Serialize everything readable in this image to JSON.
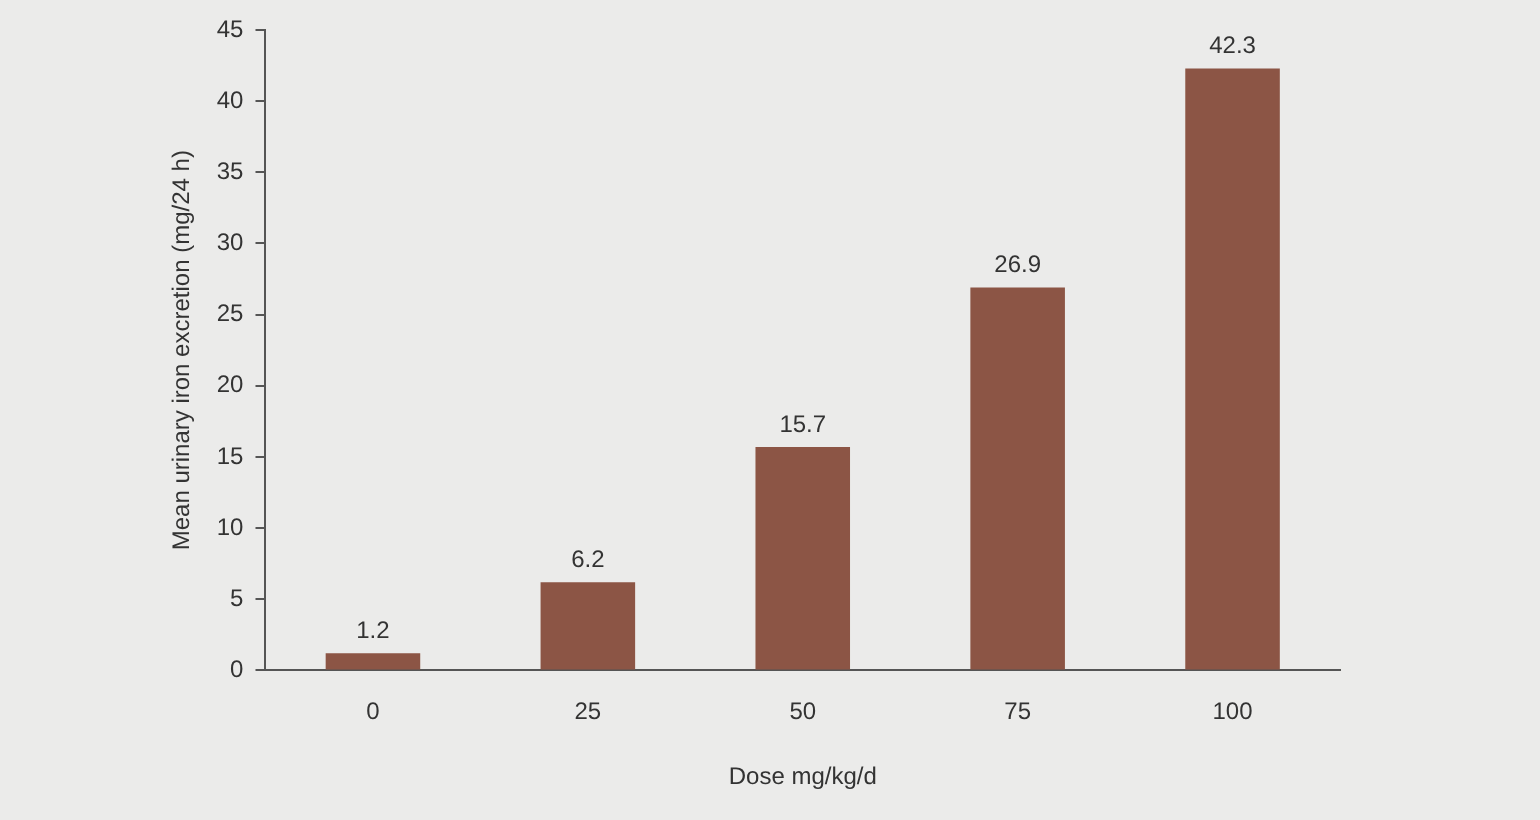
{
  "chart_data": {
    "type": "bar",
    "xlabel": "Dose mg/kg/d",
    "ylabel": "Mean urinary iron excretion (mg/24 h)",
    "categories": [
      "0",
      "25",
      "50",
      "75",
      "100"
    ],
    "values": [
      1.2,
      6.2,
      15.7,
      26.9,
      42.3
    ],
    "color": "#8c5545",
    "ylim": [
      0,
      45
    ],
    "yticks": [
      0,
      5,
      10,
      15,
      20,
      25,
      30,
      35,
      40,
      45
    ],
    "data_labels": true,
    "grid": false
  }
}
